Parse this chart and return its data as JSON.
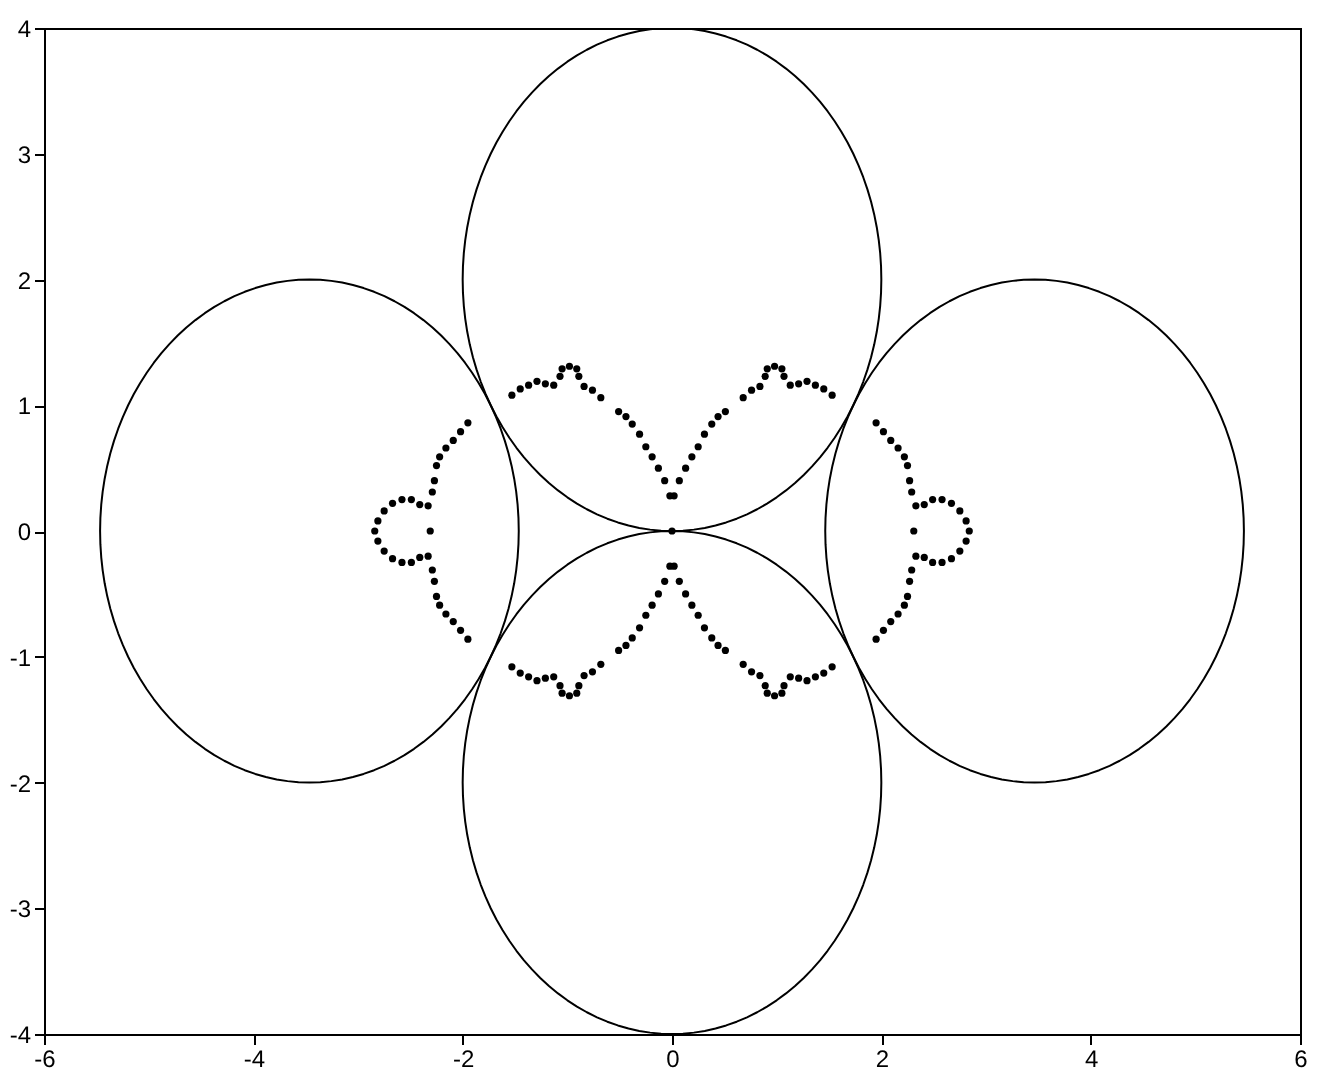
{
  "chart_data": {
    "type": "scatter",
    "color": "#000000",
    "marker": "circle",
    "xlim": [
      -6,
      6
    ],
    "ylim": [
      -4,
      4
    ],
    "xticks": [
      -6,
      -4,
      -2,
      0,
      2,
      4,
      6
    ],
    "yticks": [
      -4,
      -3,
      -2,
      -1,
      0,
      1,
      2,
      3,
      4
    ],
    "grid": false,
    "x": [
      -1.53,
      -1.45,
      -1.37,
      -1.29,
      -1.21,
      -1.13,
      -1.07,
      -1.05,
      -0.98,
      -0.91,
      -0.89,
      -0.84,
      -0.76,
      -0.68,
      -0.51,
      -0.44,
      -0.38,
      -0.31,
      -0.25,
      -0.19,
      -0.13,
      -0.07,
      -0.02,
      1.53,
      1.45,
      1.37,
      1.29,
      1.21,
      1.13,
      1.07,
      1.05,
      0.98,
      0.91,
      0.89,
      0.84,
      0.76,
      0.68,
      0.51,
      0.44,
      0.38,
      0.31,
      0.25,
      0.19,
      0.13,
      0.07,
      0.02,
      -1.53,
      -1.45,
      -1.37,
      -1.29,
      -1.21,
      -1.13,
      -1.07,
      -1.05,
      -0.98,
      -0.91,
      -0.89,
      -0.84,
      -0.76,
      -0.68,
      -0.51,
      -0.44,
      -0.38,
      -0.31,
      -0.25,
      -0.19,
      -0.13,
      -0.07,
      -0.02,
      1.53,
      1.45,
      1.37,
      1.29,
      1.21,
      1.13,
      1.07,
      1.05,
      0.98,
      0.91,
      0.89,
      0.84,
      0.76,
      0.68,
      0.51,
      0.44,
      0.38,
      0.31,
      0.25,
      0.19,
      0.13,
      0.07,
      0.02,
      -1.95,
      -2.02,
      -2.09,
      -2.16,
      -2.22,
      -2.25,
      -2.27,
      -2.29,
      -2.33,
      -2.41,
      -2.49,
      -2.58,
      -2.67,
      -2.75,
      -2.81,
      -2.84,
      -2.31,
      -1.95,
      -2.02,
      -2.09,
      -2.16,
      -2.22,
      -2.25,
      -2.27,
      -2.29,
      -2.33,
      -2.41,
      -2.49,
      -2.58,
      -2.67,
      -2.75,
      -2.81,
      1.95,
      2.02,
      2.09,
      2.16,
      2.22,
      2.25,
      2.27,
      2.29,
      2.33,
      2.41,
      2.49,
      2.58,
      2.67,
      2.75,
      2.81,
      2.84,
      2.31,
      1.95,
      2.02,
      2.09,
      2.16,
      2.22,
      2.25,
      2.27,
      2.29,
      2.33,
      2.41,
      2.49,
      2.58,
      2.67,
      2.75,
      2.81,
      0
    ],
    "values": [
      1.08,
      1.13,
      1.16,
      1.19,
      1.17,
      1.16,
      1.23,
      1.29,
      1.31,
      1.29,
      1.23,
      1.15,
      1.12,
      1.06,
      0.95,
      0.91,
      0.85,
      0.77,
      0.67,
      0.59,
      0.5,
      0.4,
      0.28,
      1.08,
      1.13,
      1.16,
      1.19,
      1.17,
      1.16,
      1.23,
      1.29,
      1.31,
      1.29,
      1.23,
      1.15,
      1.12,
      1.06,
      0.95,
      0.91,
      0.85,
      0.77,
      0.67,
      0.59,
      0.5,
      0.4,
      0.28,
      -1.08,
      -1.13,
      -1.16,
      -1.19,
      -1.17,
      -1.16,
      -1.23,
      -1.29,
      -1.31,
      -1.29,
      -1.23,
      -1.15,
      -1.12,
      -1.06,
      -0.95,
      -0.91,
      -0.85,
      -0.77,
      -0.67,
      -0.59,
      -0.5,
      -0.4,
      -0.28,
      -1.08,
      -1.13,
      -1.16,
      -1.19,
      -1.17,
      -1.16,
      -1.23,
      -1.29,
      -1.31,
      -1.29,
      -1.23,
      -1.15,
      -1.12,
      -1.06,
      -0.95,
      -0.91,
      -0.85,
      -0.77,
      -0.67,
      -0.59,
      -0.5,
      -0.4,
      -0.28,
      0.86,
      0.79,
      0.72,
      0.66,
      0.59,
      0.52,
      0.4,
      0.31,
      0.2,
      0.21,
      0.25,
      0.25,
      0.22,
      0.16,
      0.08,
      0,
      0,
      -0.86,
      -0.79,
      -0.72,
      -0.66,
      -0.59,
      -0.52,
      -0.4,
      -0.31,
      -0.2,
      -0.21,
      -0.25,
      -0.25,
      -0.22,
      -0.16,
      -0.08,
      0.86,
      0.79,
      0.72,
      0.66,
      0.59,
      0.52,
      0.4,
      0.31,
      0.2,
      0.21,
      0.25,
      0.25,
      0.22,
      0.16,
      0.08,
      0,
      0,
      -0.86,
      -0.79,
      -0.72,
      -0.66,
      -0.59,
      -0.52,
      -0.4,
      -0.31,
      -0.2,
      -0.21,
      -0.25,
      -0.25,
      -0.22,
      -0.16,
      -0.08,
      0
    ]
  }
}
